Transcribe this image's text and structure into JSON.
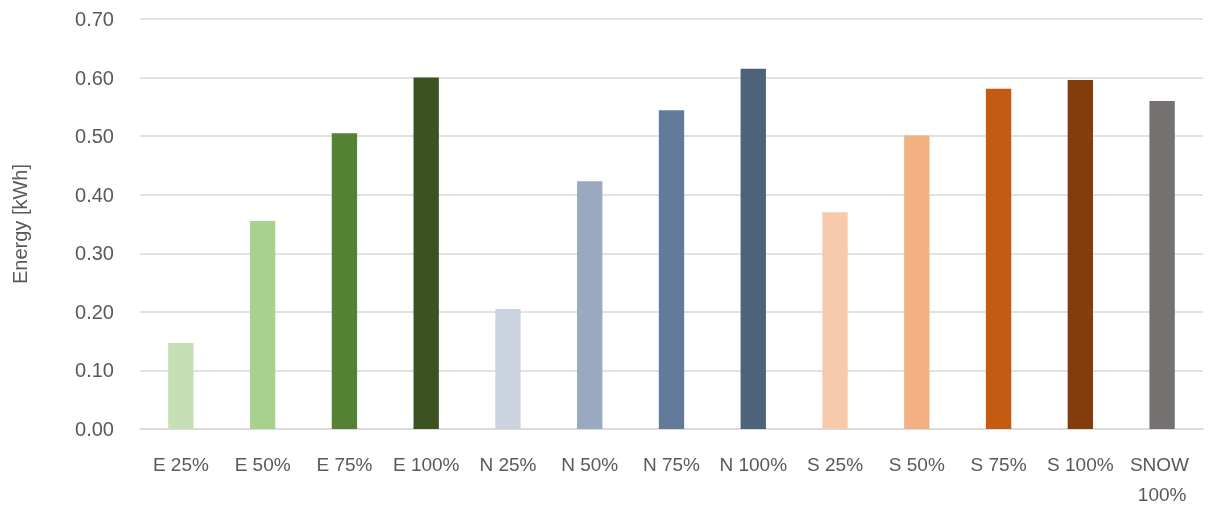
{
  "chart_data": {
    "type": "bar",
    "ylabel": "Energy [kWh]",
    "categories": [
      "E 25%",
      "E 50%",
      "E 75%",
      "E 100%",
      "N 25%",
      "N 50%",
      "N 75%",
      "N 100%",
      "S 25%",
      "S 50%",
      "S 75%",
      "S 100%",
      "SNOW 100%"
    ],
    "values": [
      0.147,
      0.355,
      0.505,
      0.6,
      0.205,
      0.423,
      0.544,
      0.615,
      0.37,
      0.501,
      0.581,
      0.596,
      0.56
    ],
    "colors": [
      "#c5e0b4",
      "#a9d18e",
      "#548235",
      "#3b5323",
      "#cbd4de",
      "#99a9bf",
      "#637b9a",
      "#4f627c",
      "#f7caac",
      "#f3b183",
      "#c55a11",
      "#843c0c",
      "#757171"
    ],
    "ylim": [
      0,
      0.7
    ],
    "yticks": [
      {
        "value": 0,
        "label": "0.00"
      },
      {
        "value": 0.1,
        "label": "0.10"
      },
      {
        "value": 0.2,
        "label": "0.20"
      },
      {
        "value": 0.3,
        "label": "0.30"
      },
      {
        "value": 0.4,
        "label": "0.40"
      },
      {
        "value": 0.5,
        "label": "0.50"
      },
      {
        "value": 0.6,
        "label": "0.60"
      },
      {
        "value": 0.7,
        "label": "0.70"
      }
    ],
    "grid": "y"
  }
}
